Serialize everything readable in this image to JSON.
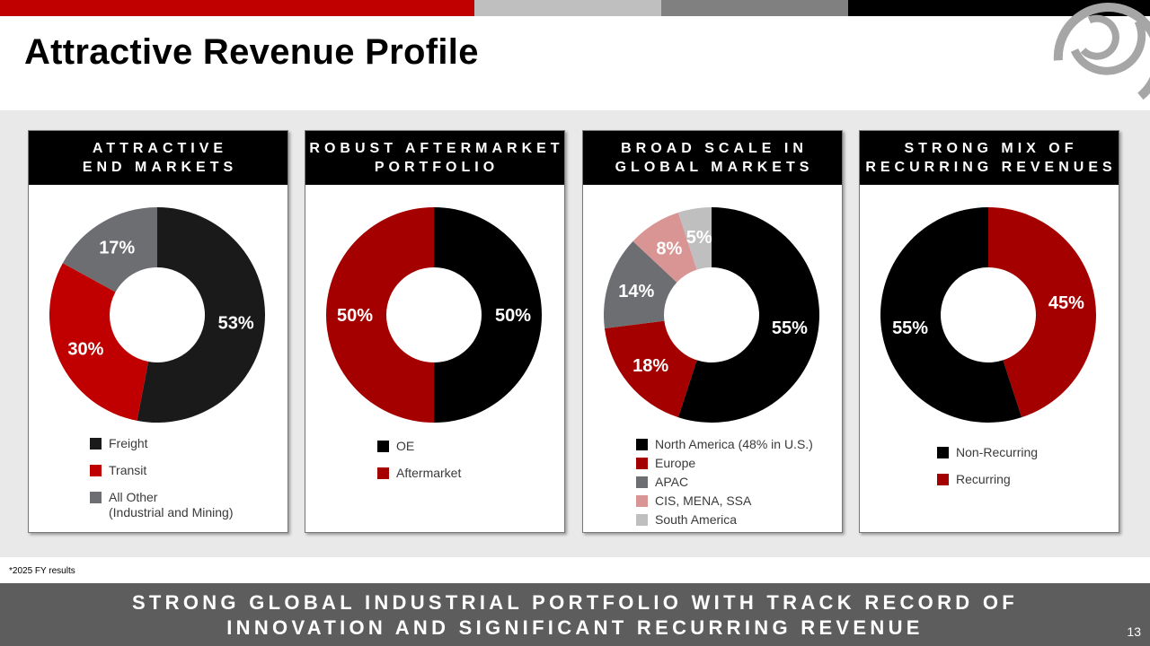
{
  "slide": {
    "title": "Attractive Revenue Profile",
    "footnote": "*2025 FY results",
    "tagline": "STRONG GLOBAL INDUSTRIAL PORTFOLIO WITH TRACK RECORD OF\nINNOVATION AND SIGNIFICANT RECURRING REVENUE",
    "page_number": "13"
  },
  "topbar_colors": [
    "#c00000",
    "#bfbfbf",
    "#808080",
    "#000000"
  ],
  "logo": {
    "icon": "concentric-circles-logo-icon",
    "color": "#a6a6a6"
  },
  "chart_data": [
    {
      "type": "pie",
      "heading": "ATTRACTIVE\nEND MARKETS",
      "series": [
        {
          "name": "Freight",
          "legend": "Freight",
          "value": 53,
          "label": "53%",
          "color": "#1a1a1a"
        },
        {
          "name": "Transit",
          "legend": "Transit",
          "value": 30,
          "label": "30%",
          "color": "#c00000"
        },
        {
          "name": "All Other",
          "legend": "All Other\n(Industrial and Mining)",
          "value": 17,
          "label": "17%",
          "color": "#6d6e71"
        }
      ]
    },
    {
      "type": "pie",
      "heading": "ROBUST AFTERMARKET\nPORTFOLIO",
      "series": [
        {
          "name": "OE",
          "legend": "OE",
          "value": 50,
          "label": "50%",
          "color": "#000000"
        },
        {
          "name": "Aftermarket",
          "legend": "Aftermarket",
          "value": 50,
          "label": "50%",
          "color": "#a50000"
        }
      ]
    },
    {
      "type": "pie",
      "heading": "BROAD SCALE IN\nGLOBAL MARKETS",
      "series": [
        {
          "name": "North America",
          "legend": "North America (48% in U.S.)",
          "value": 55,
          "label": "55%",
          "color": "#000000"
        },
        {
          "name": "Europe",
          "legend": "Europe",
          "value": 18,
          "label": "18%",
          "color": "#a50000"
        },
        {
          "name": "APAC",
          "legend": "APAC",
          "value": 14,
          "label": "14%",
          "color": "#6d6e71"
        },
        {
          "name": "CIS, MENA, SSA",
          "legend": "CIS, MENA, SSA",
          "value": 8,
          "label": "8%",
          "color": "#d99594"
        },
        {
          "name": "South America",
          "legend": "South America",
          "value": 5,
          "label": "5%",
          "color": "#bfbfbf"
        }
      ]
    },
    {
      "type": "pie",
      "heading": "STRONG MIX OF\nRECURRING REVENUES",
      "series": [
        {
          "name": "Recurring",
          "legend": "Recurring",
          "value": 45,
          "label": "45%",
          "color": "#a50000"
        },
        {
          "name": "Non-Recurring",
          "legend": "Non-Recurring",
          "value": 55,
          "label": "55%",
          "color": "#000000"
        }
      ],
      "legend_order": [
        1,
        0
      ]
    }
  ]
}
